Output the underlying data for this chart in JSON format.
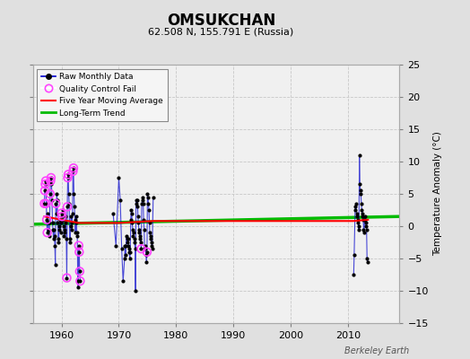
{
  "title": "OMSUKCHAN",
  "subtitle": "62.508 N, 155.791 E (Russia)",
  "ylabel": "Temperature Anomaly (°C)",
  "credit": "Berkeley Earth",
  "xlim": [
    1955,
    2019
  ],
  "ylim": [
    -15,
    25
  ],
  "yticks": [
    -15,
    -10,
    -5,
    0,
    5,
    10,
    15,
    20,
    25
  ],
  "xticks": [
    1960,
    1970,
    1980,
    1990,
    2000,
    2010
  ],
  "bg_color": "#e0e0e0",
  "plot_bg": "#f0f0f0",
  "raw_color": "#0000cc",
  "qc_color": "#ff44ff",
  "ma_color": "#ff0000",
  "trend_color": "#00bb00",
  "raw_monthly": [
    [
      1957.0,
      3.5
    ],
    [
      1957.083,
      5.5
    ],
    [
      1957.167,
      6.5
    ],
    [
      1957.25,
      7.0
    ],
    [
      1957.333,
      3.5
    ],
    [
      1957.417,
      1.0
    ],
    [
      1957.5,
      -1.0
    ],
    [
      1957.583,
      2.0
    ],
    [
      1957.667,
      0.5
    ],
    [
      1957.75,
      -0.5
    ],
    [
      1957.833,
      -1.5
    ],
    [
      1957.917,
      0.5
    ],
    [
      1958.0,
      5.0
    ],
    [
      1958.083,
      7.0
    ],
    [
      1958.167,
      7.5
    ],
    [
      1958.25,
      6.5
    ],
    [
      1958.333,
      4.0
    ],
    [
      1958.417,
      0.5
    ],
    [
      1958.5,
      -0.5
    ],
    [
      1958.583,
      -2.0
    ],
    [
      1958.667,
      -0.5
    ],
    [
      1958.75,
      -1.5
    ],
    [
      1958.833,
      -3.0
    ],
    [
      1958.917,
      -6.0
    ],
    [
      1959.0,
      3.5
    ],
    [
      1959.083,
      2.0
    ],
    [
      1959.167,
      5.0
    ],
    [
      1959.25,
      4.0
    ],
    [
      1959.333,
      0.5
    ],
    [
      1959.417,
      -2.0
    ],
    [
      1959.5,
      -2.5
    ],
    [
      1959.583,
      -0.5
    ],
    [
      1959.667,
      0.0
    ],
    [
      1959.75,
      1.0
    ],
    [
      1959.833,
      -1.0
    ],
    [
      1959.917,
      0.5
    ],
    [
      1960.0,
      2.0
    ],
    [
      1960.083,
      1.5
    ],
    [
      1960.167,
      2.5
    ],
    [
      1960.25,
      1.0
    ],
    [
      1960.333,
      0.0
    ],
    [
      1960.417,
      -1.5
    ],
    [
      1960.5,
      -1.0
    ],
    [
      1960.583,
      -0.5
    ],
    [
      1960.667,
      1.5
    ],
    [
      1960.75,
      0.5
    ],
    [
      1960.833,
      -2.0
    ],
    [
      1960.917,
      -8.0
    ],
    [
      1961.0,
      3.0
    ],
    [
      1961.083,
      7.5
    ],
    [
      1961.167,
      8.0
    ],
    [
      1961.25,
      5.0
    ],
    [
      1961.333,
      3.5
    ],
    [
      1961.417,
      -2.0
    ],
    [
      1961.5,
      -2.5
    ],
    [
      1961.583,
      0.0
    ],
    [
      1961.667,
      1.5
    ],
    [
      1961.75,
      -0.5
    ],
    [
      1961.833,
      0.5
    ],
    [
      1961.917,
      2.0
    ],
    [
      1962.0,
      8.5
    ],
    [
      1962.083,
      9.0
    ],
    [
      1962.167,
      5.0
    ],
    [
      1962.25,
      3.0
    ],
    [
      1962.333,
      1.0
    ],
    [
      1962.417,
      -1.0
    ],
    [
      1962.5,
      0.5
    ],
    [
      1962.583,
      1.5
    ],
    [
      1962.667,
      -1.0
    ],
    [
      1962.75,
      -1.5
    ],
    [
      1962.833,
      -8.5
    ],
    [
      1962.917,
      -9.5
    ],
    [
      1963.0,
      -3.0
    ],
    [
      1963.083,
      -4.0
    ],
    [
      1963.167,
      -7.0
    ],
    [
      1963.25,
      -8.5
    ],
    [
      1969.0,
      2.0
    ],
    [
      1969.5,
      -3.0
    ],
    [
      1970.0,
      7.5
    ],
    [
      1970.25,
      4.0
    ],
    [
      1970.5,
      -3.5
    ],
    [
      1970.75,
      -8.5
    ],
    [
      1971.0,
      -5.0
    ],
    [
      1971.083,
      -3.0
    ],
    [
      1971.167,
      -4.5
    ],
    [
      1971.25,
      -3.0
    ],
    [
      1971.333,
      -1.5
    ],
    [
      1971.417,
      -2.0
    ],
    [
      1971.5,
      -2.5
    ],
    [
      1971.583,
      -2.0
    ],
    [
      1971.667,
      -3.0
    ],
    [
      1971.75,
      -3.5
    ],
    [
      1971.833,
      -4.0
    ],
    [
      1971.917,
      -5.0
    ],
    [
      1972.0,
      -4.0
    ],
    [
      1972.083,
      1.0
    ],
    [
      1972.167,
      2.5
    ],
    [
      1972.25,
      2.0
    ],
    [
      1972.333,
      0.5
    ],
    [
      1972.417,
      -0.5
    ],
    [
      1972.5,
      -1.5
    ],
    [
      1972.583,
      -1.0
    ],
    [
      1972.667,
      -2.0
    ],
    [
      1972.75,
      -2.5
    ],
    [
      1972.833,
      -3.5
    ],
    [
      1972.917,
      -10.0
    ],
    [
      1973.0,
      4.0
    ],
    [
      1973.083,
      3.5
    ],
    [
      1973.167,
      3.0
    ],
    [
      1973.25,
      4.0
    ],
    [
      1973.333,
      1.5
    ],
    [
      1973.417,
      0.5
    ],
    [
      1973.5,
      -0.5
    ],
    [
      1973.583,
      -1.0
    ],
    [
      1973.667,
      -1.5
    ],
    [
      1973.75,
      -2.0
    ],
    [
      1973.833,
      -2.5
    ],
    [
      1973.917,
      -3.5
    ],
    [
      1974.0,
      3.5
    ],
    [
      1974.083,
      4.0
    ],
    [
      1974.167,
      4.5
    ],
    [
      1974.25,
      3.5
    ],
    [
      1974.333,
      1.0
    ],
    [
      1974.417,
      -0.5
    ],
    [
      1974.5,
      -3.5
    ],
    [
      1974.583,
      -3.0
    ],
    [
      1974.667,
      -3.5
    ],
    [
      1974.75,
      -4.5
    ],
    [
      1974.833,
      -5.5
    ],
    [
      1974.917,
      -4.0
    ],
    [
      1975.0,
      5.0
    ],
    [
      1975.083,
      4.5
    ],
    [
      1975.167,
      3.5
    ],
    [
      1975.25,
      2.5
    ],
    [
      1975.333,
      0.5
    ],
    [
      1975.417,
      -1.0
    ],
    [
      1975.5,
      -1.5
    ],
    [
      1975.583,
      -2.0
    ],
    [
      1975.667,
      -2.5
    ],
    [
      1975.75,
      -3.0
    ],
    [
      1975.833,
      -3.5
    ],
    [
      1976.0,
      4.5
    ],
    [
      2011.0,
      -7.5
    ],
    [
      2011.083,
      -4.5
    ],
    [
      2011.25,
      2.5
    ],
    [
      2011.333,
      3.0
    ],
    [
      2011.417,
      3.5
    ],
    [
      2011.5,
      2.0
    ],
    [
      2011.583,
      1.5
    ],
    [
      2011.667,
      1.0
    ],
    [
      2011.75,
      0.5
    ],
    [
      2011.833,
      0.0
    ],
    [
      2011.917,
      -0.5
    ],
    [
      2012.0,
      11.0
    ],
    [
      2012.083,
      6.5
    ],
    [
      2012.167,
      5.5
    ],
    [
      2012.25,
      5.0
    ],
    [
      2012.333,
      3.5
    ],
    [
      2012.417,
      2.5
    ],
    [
      2012.5,
      1.5
    ],
    [
      2012.583,
      2.0
    ],
    [
      2012.667,
      1.0
    ],
    [
      2012.75,
      -0.5
    ],
    [
      2012.833,
      -1.0
    ],
    [
      2012.917,
      1.5
    ],
    [
      2013.0,
      1.0
    ],
    [
      2013.083,
      0.5
    ],
    [
      2013.167,
      0.0
    ],
    [
      2013.25,
      -0.5
    ],
    [
      2013.333,
      -5.0
    ],
    [
      2013.417,
      -5.5
    ]
  ],
  "qc_fail_scatter": [
    [
      1957.0,
      3.5
    ],
    [
      1957.083,
      5.5
    ],
    [
      1957.167,
      6.5
    ],
    [
      1957.25,
      7.0
    ],
    [
      1957.333,
      3.5
    ],
    [
      1957.417,
      1.0
    ],
    [
      1957.5,
      -1.0
    ],
    [
      1958.0,
      5.0
    ],
    [
      1958.083,
      7.0
    ],
    [
      1958.167,
      7.5
    ],
    [
      1959.0,
      3.5
    ],
    [
      1960.0,
      2.0
    ],
    [
      1960.083,
      1.5
    ],
    [
      1960.917,
      -8.0
    ],
    [
      1961.0,
      3.0
    ],
    [
      1961.083,
      7.5
    ],
    [
      1961.167,
      8.0
    ],
    [
      1962.0,
      8.5
    ],
    [
      1962.083,
      9.0
    ],
    [
      1963.0,
      -3.0
    ],
    [
      1963.083,
      -4.0
    ],
    [
      1963.167,
      -7.0
    ],
    [
      1963.25,
      -8.5
    ],
    [
      1973.917,
      -3.5
    ],
    [
      1974.917,
      -4.0
    ]
  ],
  "ma_x": [
    1957,
    1963,
    1969,
    1970,
    1976,
    2011,
    2013.5
  ],
  "ma_y": [
    1.5,
    0.5,
    0.5,
    0.5,
    0.8,
    0.8,
    1.0
  ],
  "trend_x": [
    1955,
    2019
  ],
  "trend_y": [
    0.3,
    1.5
  ]
}
